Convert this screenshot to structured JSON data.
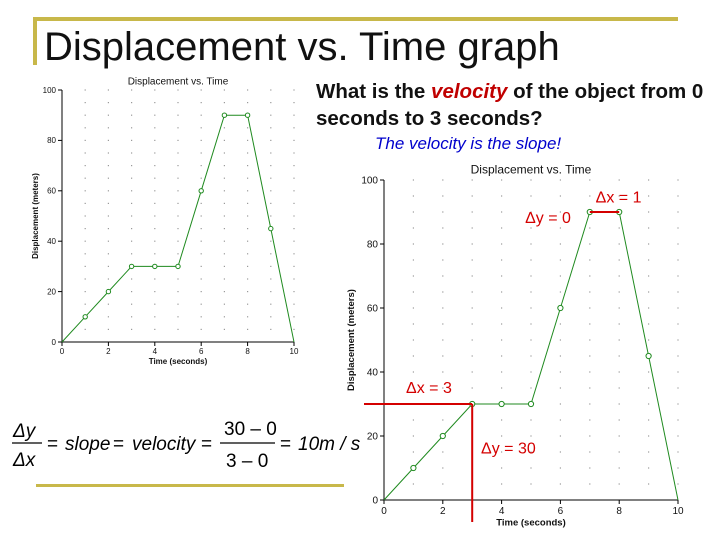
{
  "slide": {
    "title": "Displacement vs. Time graph",
    "question_parts": [
      "What is the ",
      "velocity",
      " of the object from 0 seconds to 3 seconds?"
    ],
    "answer": "The velocity is the slope!"
  },
  "colors": {
    "accent_rule": "#c8b84a",
    "highlight": "#c00000",
    "answer_text": "#0000cc",
    "series_line": "#1f8a1f",
    "annotation": "#d40000"
  },
  "formula": {
    "dy": "Δy",
    "dx": "Δx",
    "equals": "=",
    "slope": "slope",
    "velocity": "velocity",
    "numerator": "30 – 0",
    "denominator": "3 – 0",
    "result": "10m / s"
  },
  "chart_data": [
    {
      "type": "line",
      "title": "Displacement vs. Time",
      "xlabel": "Time (seconds)",
      "ylabel": "Displacement (meters)",
      "xlim": [
        0,
        10
      ],
      "ylim": [
        0,
        100
      ],
      "x_ticks": [
        "0",
        "2",
        "4",
        "6",
        "8",
        "10"
      ],
      "y_ticks": [
        "0",
        "20",
        "40",
        "60",
        "80",
        "100"
      ],
      "grid": "dotted",
      "x": [
        0,
        1,
        2,
        3,
        4,
        5,
        6,
        7,
        8,
        9,
        10
      ],
      "series": [
        {
          "values": [
            0,
            10,
            20,
            30,
            30,
            30,
            60,
            90,
            90,
            45,
            0
          ]
        }
      ]
    },
    {
      "type": "line",
      "title": "Displacement vs. Time",
      "xlabel": "Time (seconds)",
      "ylabel": "Displacement (meters)",
      "xlim": [
        0,
        10
      ],
      "ylim": [
        0,
        100
      ],
      "x_ticks": [
        "0",
        "2",
        "4",
        "6",
        "8",
        "10"
      ],
      "y_ticks": [
        "0",
        "20",
        "40",
        "60",
        "80",
        "100"
      ],
      "grid": "dotted",
      "x": [
        0,
        1,
        2,
        3,
        4,
        5,
        6,
        7,
        8,
        9,
        10
      ],
      "series": [
        {
          "values": [
            0,
            10,
            20,
            30,
            30,
            30,
            60,
            90,
            90,
            45,
            0
          ]
        }
      ],
      "annotations": [
        {
          "text": "Δx = 1",
          "x_start": 7,
          "x_end": 8,
          "y": 90
        },
        {
          "text": "Δy = 0",
          "x": 7.5,
          "y": 90
        },
        {
          "text": "Δx = 3",
          "x_start": 0,
          "x_end": 3,
          "y": 30
        },
        {
          "text": "Δy = 30",
          "x": 3,
          "y_start": 0,
          "y_end": 30
        }
      ]
    }
  ]
}
